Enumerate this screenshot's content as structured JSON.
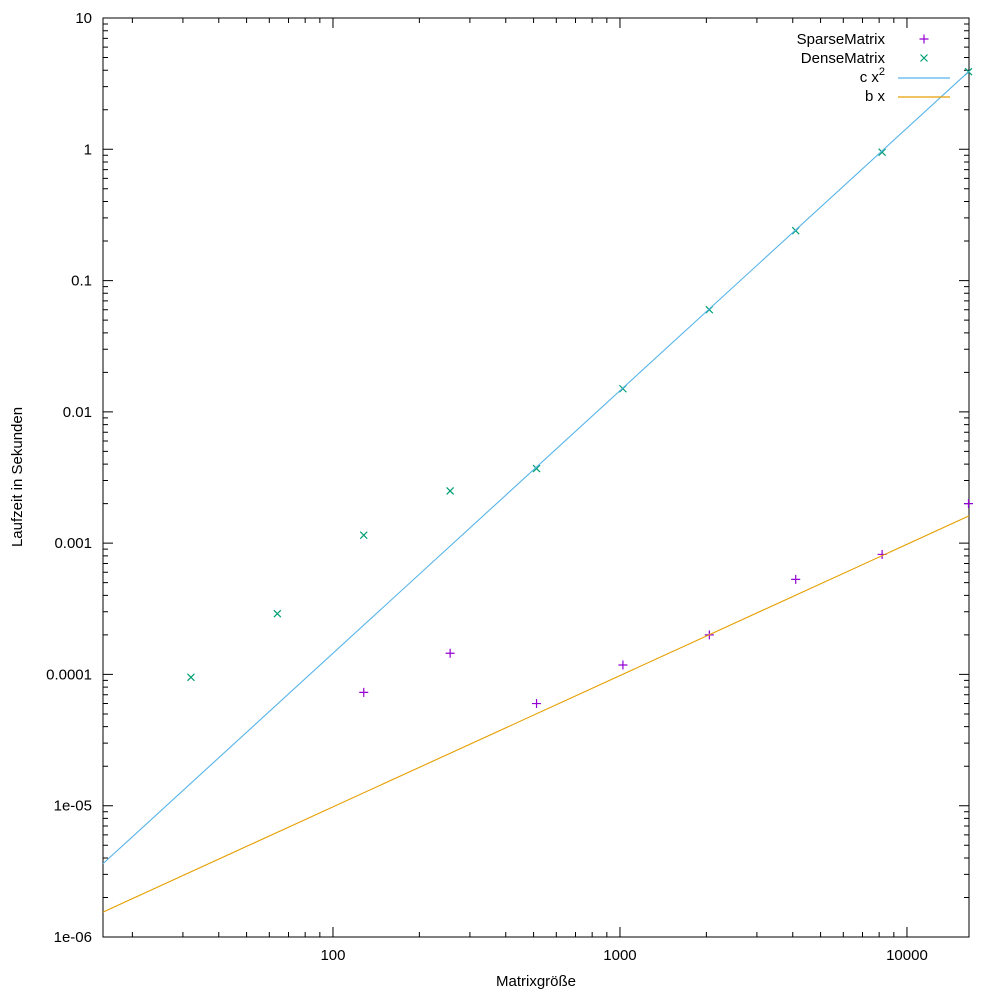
{
  "chart_data": {
    "type": "scatter",
    "title": "",
    "xlabel": "Matrixgröße",
    "ylabel": "Laufzeit in Sekunden",
    "xscale": "log",
    "yscale": "log",
    "xlim": [
      15.8,
      16450
    ],
    "ylim": [
      1e-06,
      10
    ],
    "grid": false,
    "legend_position": "top-right-inside",
    "x_ticks": [
      {
        "value": 100,
        "label": "100"
      },
      {
        "value": 1000,
        "label": "1000"
      },
      {
        "value": 10000,
        "label": "10000"
      }
    ],
    "y_ticks": [
      {
        "value": 10,
        "label": "10"
      },
      {
        "value": 1,
        "label": "1"
      },
      {
        "value": 0.1,
        "label": "0.1"
      },
      {
        "value": 0.01,
        "label": "0.01"
      },
      {
        "value": 0.001,
        "label": "0.001"
      },
      {
        "value": 0.0001,
        "label": "0.0001"
      },
      {
        "value": 1e-05,
        "label": "1e-05"
      },
      {
        "value": 1e-06,
        "label": "1e-06"
      }
    ],
    "series": [
      {
        "name": "SparseMatrix",
        "legend_label": "SparseMatrix",
        "type": "points",
        "marker": "plus",
        "color": "#9400d3",
        "x": [
          128,
          256,
          512,
          1024,
          2048,
          4096,
          8192,
          16384
        ],
        "y": [
          7.3e-05,
          0.000145,
          6e-05,
          0.000118,
          0.0002,
          0.00053,
          0.00082,
          0.002
        ]
      },
      {
        "name": "DenseMatrix",
        "legend_label": "DenseMatrix",
        "type": "points",
        "marker": "cross",
        "color": "#009e73",
        "x": [
          32,
          64,
          128,
          256,
          512,
          1024,
          2048,
          4096,
          8192,
          16384
        ],
        "y": [
          9.5e-05,
          0.00029,
          0.00115,
          0.0025,
          0.0037,
          0.015,
          0.06,
          0.24,
          0.95,
          3.9
        ]
      },
      {
        "name": "c x^2",
        "legend_label": "c x",
        "legend_sup": "2",
        "type": "line",
        "color": "#56b4e9",
        "coefficient": 1.45e-08,
        "power": 2
      },
      {
        "name": "b x",
        "legend_label": "b x",
        "legend_sup": "",
        "type": "line",
        "color": "#e69f00",
        "coefficient": 9.8e-08,
        "power": 1
      }
    ]
  },
  "colors": {
    "background": "#ffffff",
    "border": "#000000",
    "text": "#000000",
    "sparse": "#9400d3",
    "dense": "#009e73",
    "quadratic_fit": "#56b4e9",
    "linear_fit": "#e69f00"
  }
}
